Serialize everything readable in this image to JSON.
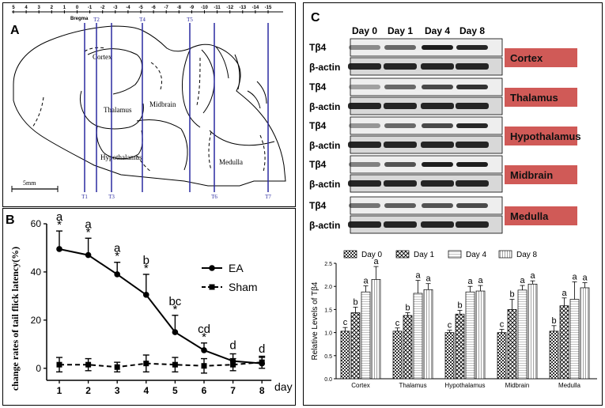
{
  "panel_a": {
    "letter": "A",
    "ruler_ticks": [
      "5",
      "4",
      "3",
      "2",
      "1",
      "0",
      "-1",
      "-2",
      "-3",
      "-4",
      "-5",
      "-6",
      "-7",
      "-8",
      "-9",
      "-10",
      "-11",
      "-12",
      "-13",
      "-14",
      "-15"
    ],
    "bregma": "Bregma",
    "regions": [
      "Cortex",
      "Thalamus",
      "Midbrain",
      "Hypothalamus",
      "Medulla"
    ],
    "section_labels": [
      "T1",
      "T2",
      "T3",
      "T4",
      "T5",
      "T6",
      "T7"
    ],
    "scale_label": "5mm"
  },
  "panel_b": {
    "letter": "B",
    "chart_data": {
      "type": "line",
      "title": "",
      "ylabel": "change rates of tail flick latency(%)",
      "xlabel": "day",
      "x": [
        1,
        2,
        3,
        4,
        5,
        6,
        7,
        8
      ],
      "ylim": [
        -5,
        60
      ],
      "yticks": [
        0,
        20,
        40,
        60
      ],
      "series": [
        {
          "name": "EA",
          "marker": "circle",
          "values": [
            49.5,
            47,
            39,
            30.5,
            15,
            7.5,
            3,
            2
          ],
          "errors": [
            7.5,
            7,
            5,
            8.5,
            7,
            3,
            3,
            2.5
          ]
        },
        {
          "name": "Sham",
          "marker": "square",
          "values": [
            1.5,
            1.5,
            0.5,
            2,
            1.5,
            1,
            1.5,
            2.5
          ],
          "errors": [
            3,
            2.5,
            2,
            3.5,
            3,
            3,
            2.5,
            2.5
          ]
        }
      ],
      "annotations": [
        {
          "day": 1,
          "letter": "a",
          "star": "*"
        },
        {
          "day": 2,
          "letter": "a",
          "star": "*"
        },
        {
          "day": 3,
          "letter": "a",
          "star": "*"
        },
        {
          "day": 4,
          "letter": "b",
          "star": "*"
        },
        {
          "day": 5,
          "letter": "bc",
          "star": "*"
        },
        {
          "day": 6,
          "letter": "cd",
          "star": "*"
        },
        {
          "day": 7,
          "letter": "d",
          "star": ""
        },
        {
          "day": 8,
          "letter": "d",
          "star": ""
        }
      ]
    }
  },
  "panel_c": {
    "letter": "C",
    "days": [
      "Day 0",
      "Day 1",
      "Day 4",
      "Day 8"
    ],
    "blots": [
      {
        "region": "Cortex",
        "top": "Tβ4",
        "bottom": "β-actin"
      },
      {
        "region": "Thalamus",
        "top": "Tβ4",
        "bottom": "β-actin"
      },
      {
        "region": "Hypothalamus",
        "top": "Tβ4",
        "bottom": "β-actin"
      },
      {
        "region": "Midbrain",
        "top": "Tβ4",
        "bottom": "β-actin"
      },
      {
        "region": "Medulla",
        "top": "Tβ4",
        "bottom": "β-actin"
      }
    ],
    "label_color": "#d05a57",
    "chart_data": {
      "type": "bar",
      "ylabel": "Relative Levels of Tβ4",
      "categories": [
        "Cortex",
        "Thalamus",
        "Hypothalamus",
        "Midbrain",
        "Medulla"
      ],
      "ylim": [
        0,
        2.5
      ],
      "yticks": [
        "0.0",
        "0.5",
        "1.0",
        "1.5",
        "2.0",
        "2.5"
      ],
      "series": [
        {
          "name": "Day 0",
          "values": [
            1.03,
            1.03,
            1.0,
            1.0,
            1.03
          ],
          "errors": [
            0.08,
            0.07,
            0.05,
            0.07,
            0.12
          ],
          "letters": [
            "c",
            "c",
            "c",
            "c",
            "b"
          ]
        },
        {
          "name": "Day 1",
          "values": [
            1.43,
            1.37,
            1.4,
            1.5,
            1.58
          ],
          "errors": [
            0.12,
            0.06,
            0.08,
            0.22,
            0.17
          ],
          "letters": [
            "b",
            "b",
            "b",
            "b",
            "a"
          ]
        },
        {
          "name": "Day 4",
          "values": [
            1.88,
            1.85,
            1.88,
            1.92,
            1.72
          ],
          "errors": [
            0.13,
            0.28,
            0.12,
            0.1,
            0.38
          ],
          "letters": [
            "a",
            "a",
            "a",
            "a",
            "a"
          ]
        },
        {
          "name": "Day 8",
          "values": [
            2.15,
            1.93,
            1.9,
            2.05,
            1.97
          ],
          "errors": [
            0.28,
            0.13,
            0.12,
            0.07,
            0.11
          ],
          "letters": [
            "a",
            "a",
            "a",
            "a",
            "a"
          ]
        }
      ]
    }
  }
}
